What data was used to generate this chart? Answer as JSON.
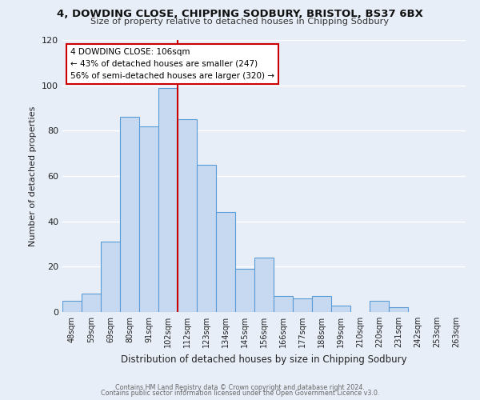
{
  "title": "4, DOWDING CLOSE, CHIPPING SODBURY, BRISTOL, BS37 6BX",
  "subtitle": "Size of property relative to detached houses in Chipping Sodbury",
  "xlabel": "Distribution of detached houses by size in Chipping Sodbury",
  "ylabel": "Number of detached properties",
  "bar_labels": [
    "48sqm",
    "59sqm",
    "69sqm",
    "80sqm",
    "91sqm",
    "102sqm",
    "112sqm",
    "123sqm",
    "134sqm",
    "145sqm",
    "156sqm",
    "166sqm",
    "177sqm",
    "188sqm",
    "199sqm",
    "210sqm",
    "220sqm",
    "231sqm",
    "242sqm",
    "253sqm",
    "263sqm"
  ],
  "bar_values": [
    5,
    8,
    31,
    86,
    82,
    99,
    85,
    65,
    44,
    19,
    24,
    7,
    6,
    7,
    3,
    0,
    5,
    2,
    0,
    0,
    0
  ],
  "bar_color": "#c6d9f0",
  "bar_edge_color": "#5b9bd5",
  "vline_x": 5.5,
  "vline_color": "#cc0000",
  "annotation_title": "4 DOWDING CLOSE: 106sqm",
  "annotation_line1": "← 43% of detached houses are smaller (247)",
  "annotation_line2": "56% of semi-detached houses are larger (320) →",
  "annotation_box_color": "#ffffff",
  "annotation_box_edge_color": "#cc0000",
  "ylim": [
    0,
    120
  ],
  "yticks": [
    0,
    20,
    40,
    60,
    80,
    100,
    120
  ],
  "footer1": "Contains HM Land Registry data © Crown copyright and database right 2024.",
  "footer2": "Contains public sector information licensed under the Open Government Licence v3.0.",
  "background_color": "#e8eef8"
}
